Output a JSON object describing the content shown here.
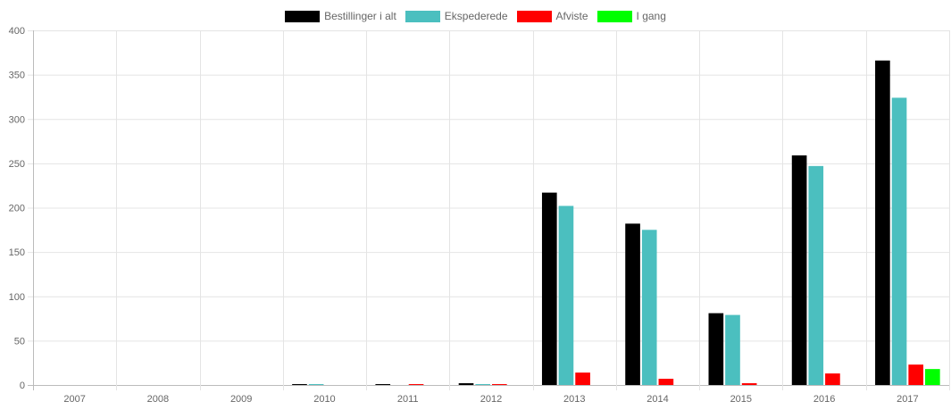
{
  "chart_data": {
    "type": "bar",
    "categories": [
      "2007",
      "2008",
      "2009",
      "2010",
      "2011",
      "2012",
      "2013",
      "2014",
      "2015",
      "2016",
      "2017"
    ],
    "series": [
      {
        "name": "Bestillinger i alt",
        "color": "#000000",
        "values": [
          0,
          0,
          0,
          1,
          1,
          2,
          217,
          182,
          81,
          259,
          366
        ]
      },
      {
        "name": "Ekspederede",
        "color": "#4bbfbf",
        "values": [
          0,
          0,
          0,
          1,
          0,
          1,
          202,
          175,
          79,
          247,
          324
        ]
      },
      {
        "name": "Afviste",
        "color": "#ff0000",
        "values": [
          0,
          0,
          0,
          0,
          1,
          1,
          14,
          7,
          2,
          13,
          23
        ]
      },
      {
        "name": "I gang",
        "color": "#00ff00",
        "values": [
          0,
          0,
          0,
          0,
          0,
          0,
          0,
          0,
          0,
          0,
          18
        ]
      }
    ],
    "ylim": [
      0,
      400
    ],
    "yticks": [
      "0",
      "50",
      "100",
      "150",
      "200",
      "250",
      "300",
      "350",
      "400"
    ],
    "grid": true,
    "legend": "top-center",
    "title": "",
    "xlabel": "",
    "ylabel": ""
  }
}
